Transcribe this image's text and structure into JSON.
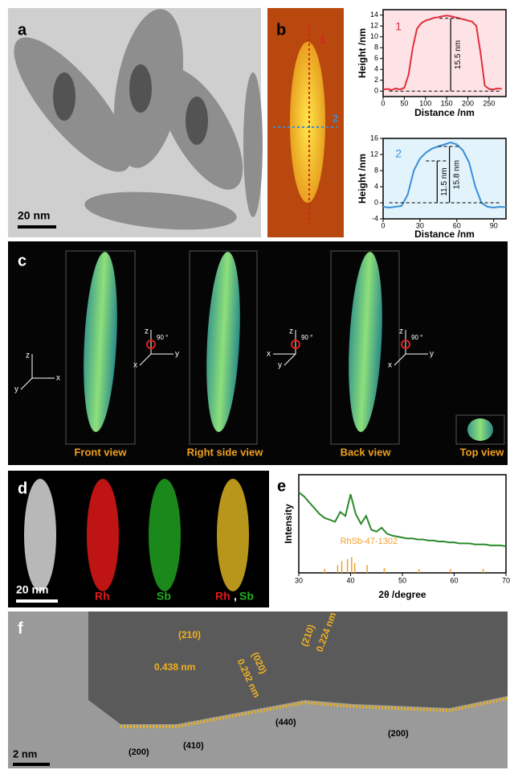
{
  "panels": {
    "a": {
      "label": "a",
      "scale_bar": "20 nm"
    },
    "b": {
      "label": "b",
      "line_1": "1",
      "line_2": "2"
    },
    "c": {
      "label": "c",
      "views": [
        "Front view",
        "Right side view",
        "Back view",
        "Top view"
      ],
      "axes": [
        [
          "z",
          "x",
          "y"
        ],
        [
          "z",
          "y",
          "x",
          "90 °"
        ],
        [
          "z",
          "x",
          "y",
          "90 °"
        ],
        [
          "z",
          "y",
          "x",
          "90 °"
        ]
      ]
    },
    "d": {
      "label": "d",
      "scale_bar": "20 nm",
      "maps": [
        "Rh",
        "Sb"
      ],
      "overlay": [
        "Rh",
        ",",
        "Sb"
      ]
    },
    "e": {
      "label": "e"
    },
    "f": {
      "label": "f",
      "scale_bar": "2 nm",
      "planes": [
        {
          "index": "(210)",
          "spacing": "0.438 nm"
        },
        {
          "index": "(020)",
          "spacing": "0.292 nm"
        },
        {
          "index": "(210)",
          "spacing": "0.224 nm"
        }
      ],
      "facets": [
        "(200)",
        "(410)",
        "(440)",
        "(200)"
      ]
    }
  },
  "chart_data": [
    {
      "type": "line",
      "xlabel": "Distance /nm",
      "ylabel": "Height /nm",
      "color": "#e0303c",
      "background": "#fde3e6",
      "annotations": [
        "1",
        "15.5 nm"
      ],
      "x": [
        0,
        10,
        20,
        30,
        40,
        50,
        60,
        70,
        80,
        90,
        100,
        110,
        120,
        130,
        140,
        150,
        160,
        170,
        180,
        190,
        200,
        210,
        220,
        230,
        240,
        250,
        260,
        270,
        280
      ],
      "values": [
        0.3,
        0.4,
        0.2,
        0.5,
        0.3,
        0.6,
        3,
        8,
        11.5,
        12.5,
        13,
        13.2,
        13.5,
        13.6,
        13.8,
        13.9,
        13.8,
        13.6,
        13.4,
        13.2,
        13,
        12.8,
        12,
        7,
        1,
        0.4,
        0.3,
        0.5,
        0.4
      ],
      "xlim": [
        0,
        290
      ],
      "ylim": [
        -1,
        15
      ],
      "xticks": [
        0,
        50,
        100,
        150,
        200,
        250
      ],
      "yticks": [
        0,
        2,
        4,
        6,
        8,
        10,
        12,
        14
      ]
    },
    {
      "type": "line",
      "xlabel": "Distance /nm",
      "ylabel": "Height /nm",
      "color": "#3a8ed8",
      "background": "#e2f3fb",
      "annotations": [
        "2",
        "11.5 nm",
        "15.8 nm"
      ],
      "x": [
        0,
        5,
        10,
        15,
        20,
        25,
        30,
        35,
        40,
        45,
        50,
        55,
        60,
        65,
        70,
        75,
        80,
        85,
        90,
        95,
        100
      ],
      "values": [
        -1,
        -1.2,
        -1,
        -0.8,
        2,
        8,
        11,
        12.5,
        13.5,
        14,
        14.5,
        15,
        14.5,
        13,
        10,
        4,
        0,
        -1,
        -1.2,
        -1,
        -1.1
      ],
      "xlim": [
        0,
        100
      ],
      "ylim": [
        -4,
        16
      ],
      "xticks": [
        0,
        30,
        60,
        90
      ],
      "yticks": [
        -4,
        0,
        4,
        8,
        12,
        16
      ]
    },
    {
      "type": "line",
      "xlabel": "2θ /degree",
      "ylabel": "Intensity",
      "color": "#2a8a2a",
      "background": "#ffffff",
      "x": [
        30,
        31,
        32,
        33,
        34,
        35,
        36,
        37,
        38,
        39,
        40,
        41,
        42,
        43,
        44,
        45,
        46,
        47,
        48,
        49,
        50,
        51,
        52,
        53,
        54,
        55,
        56,
        57,
        58,
        59,
        60,
        61,
        62,
        63,
        64,
        65,
        66,
        67,
        68,
        69,
        70
      ],
      "values": [
        82,
        78,
        72,
        66,
        60,
        56,
        54,
        52,
        62,
        58,
        80,
        60,
        50,
        58,
        44,
        42,
        46,
        40,
        38,
        37,
        36,
        35,
        35,
        34,
        34,
        33,
        33,
        32,
        32,
        31,
        31,
        30,
        30,
        30,
        29,
        29,
        29,
        28,
        28,
        28,
        27
      ],
      "xlim": [
        30,
        70
      ],
      "ylim": [
        0,
        100
      ],
      "xticks": [
        30,
        40,
        50,
        60,
        70
      ],
      "reference": {
        "name": "RhSb-47-1302",
        "color": "#f0a030",
        "x": [
          35,
          37.5,
          38.3,
          39.4,
          40.2,
          40.8,
          43.2,
          46.5,
          53.2,
          59.3,
          65.6
        ],
        "values": [
          4,
          8,
          12,
          14,
          16,
          10,
          8,
          5,
          4,
          4,
          4
        ]
      }
    }
  ]
}
